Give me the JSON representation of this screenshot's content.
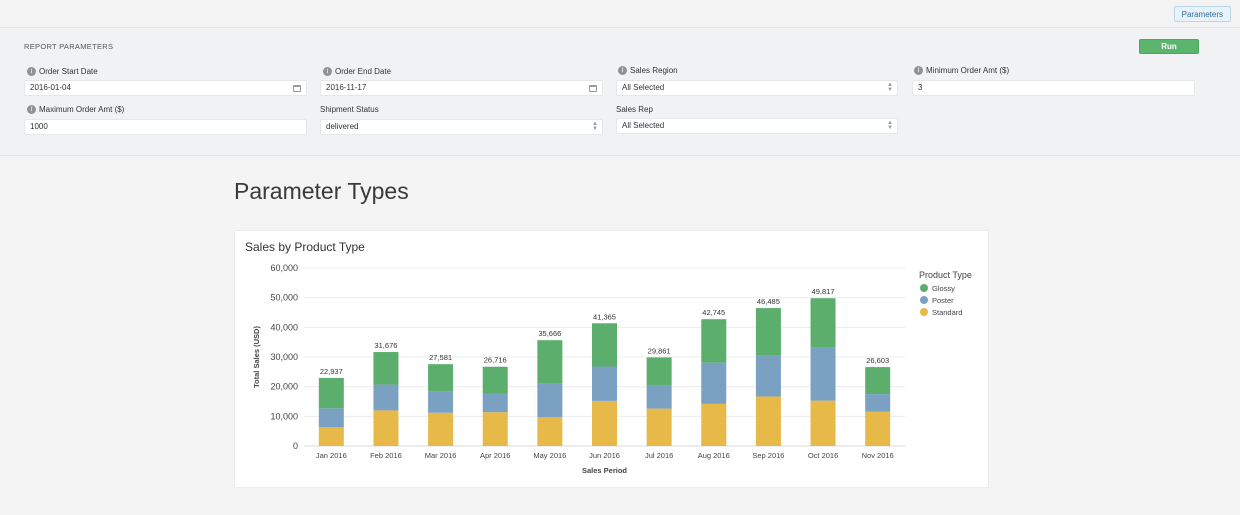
{
  "topbar": {
    "parameters_button": "Parameters"
  },
  "params": {
    "title": "REPORT PARAMETERS",
    "run_label": "Run",
    "order_start_date": {
      "label": "Order Start Date",
      "value": "2016-01-04"
    },
    "order_end_date": {
      "label": "Order End Date",
      "value": "2016-11-17"
    },
    "sales_region": {
      "label": "Sales Region",
      "value": "All Selected"
    },
    "min_order_amt": {
      "label": "Minimum Order Amt ($)",
      "value": "3"
    },
    "max_order_amt": {
      "label": "Maximum Order Amt ($)",
      "value": "1000"
    },
    "shipment_status": {
      "label": "Shipment Status",
      "value": "delivered"
    },
    "sales_rep": {
      "label": "Sales Rep",
      "value": "All Selected"
    }
  },
  "page": {
    "title": "Parameter Types"
  },
  "chart_data": {
    "type": "bar",
    "stacked": true,
    "title": "Sales by Product Type",
    "xlabel": "Sales Period",
    "ylabel": "Total Sales (USD)",
    "ylim": [
      0,
      60000
    ],
    "yticks": [
      "0",
      "10,000",
      "20,000",
      "30,000",
      "40,000",
      "50,000",
      "60,000"
    ],
    "ytick_values": [
      0,
      10000,
      20000,
      30000,
      40000,
      50000,
      60000
    ],
    "grid": true,
    "legend_title": "Product Type",
    "legend_position": "right",
    "categories": [
      "Jan 2016",
      "Feb 2016",
      "Mar 2016",
      "Apr 2016",
      "May 2016",
      "Jun 2016",
      "Jul 2016",
      "Aug 2016",
      "Sep 2016",
      "Oct 2016",
      "Nov 2016"
    ],
    "totals": [
      "22,937",
      "31,676",
      "27,581",
      "26,716",
      "35,666",
      "41,365",
      "29,861",
      "42,745",
      "46,485",
      "49,817",
      "26,603"
    ],
    "series": [
      {
        "name": "Standard",
        "color": "#e6b949",
        "values": [
          6300,
          12000,
          11200,
          11400,
          9700,
          15200,
          12600,
          14200,
          16700,
          15300,
          11600
        ]
      },
      {
        "name": "Poster",
        "color": "#7aa0c2",
        "values": [
          6400,
          8700,
          7300,
          6300,
          11300,
          11600,
          7700,
          13900,
          13700,
          17800,
          5900
        ]
      },
      {
        "name": "Glossy",
        "color": "#5cae6c",
        "values": [
          10237,
          10976,
          9081,
          9016,
          14666,
          14565,
          9561,
          14645,
          16085,
          16717,
          9103
        ]
      }
    ],
    "legend_order": [
      "Glossy",
      "Poster",
      "Standard"
    ]
  }
}
